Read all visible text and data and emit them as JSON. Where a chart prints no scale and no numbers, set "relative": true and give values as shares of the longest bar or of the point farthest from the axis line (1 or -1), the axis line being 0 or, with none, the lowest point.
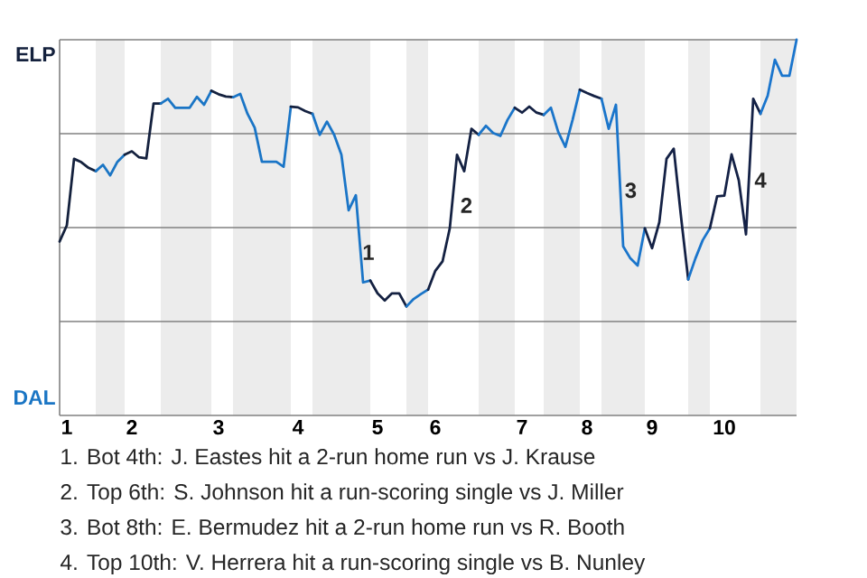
{
  "chart_data": {
    "type": "line",
    "relative": true,
    "grid": true,
    "categories": [
      null,
      "1",
      null,
      null,
      null,
      null,
      null,
      null,
      null,
      null,
      "2",
      null,
      null,
      null,
      null,
      null,
      null,
      null,
      null,
      null,
      null,
      null,
      "3",
      null,
      null,
      null,
      null,
      null,
      null,
      null,
      null,
      null,
      null,
      "4",
      null,
      null,
      null,
      null,
      null,
      null,
      null,
      null,
      null,
      null,
      "5",
      null,
      null,
      null,
      null,
      null,
      null,
      null,
      "6",
      null,
      null,
      null,
      null,
      null,
      null,
      null,
      null,
      null,
      null,
      null,
      "7",
      null,
      null,
      null,
      null,
      null,
      null,
      null,
      null,
      "8",
      null,
      null,
      null,
      null,
      null,
      null,
      null,
      null,
      "9",
      null,
      null,
      null,
      null,
      null,
      null,
      null,
      null,
      null,
      "10",
      null,
      null,
      null,
      null,
      null,
      null,
      null,
      null,
      null,
      null
    ],
    "series": [
      {
        "color": "#14213d",
        "values": [
          0.463,
          0.506,
          0.683,
          0.674,
          0.659,
          0.65,
          null,
          null,
          null,
          null,
          null,
          null,
          null,
          null,
          null,
          null,
          null,
          null,
          null,
          null,
          null,
          null,
          null,
          null,
          null,
          null,
          null,
          null,
          null,
          null,
          null,
          null,
          null,
          null,
          null,
          null,
          null,
          null,
          null,
          null,
          null,
          null,
          null,
          null,
          null,
          null,
          null,
          null,
          null,
          null,
          null,
          null,
          null,
          null,
          null,
          null,
          null,
          null,
          null,
          null,
          null,
          null,
          null,
          null,
          null,
          null,
          null,
          null,
          null,
          null,
          null,
          null,
          null,
          null,
          null,
          null,
          null,
          null,
          null,
          null,
          null,
          null,
          null,
          null,
          null,
          null,
          null,
          null,
          null,
          null,
          null,
          null,
          null,
          null,
          null,
          null,
          null,
          null,
          null,
          null,
          null,
          null,
          null
        ]
      },
      {
        "color": "#1a75c4",
        "values": [
          null,
          null,
          null,
          null,
          null,
          0.65,
          0.667,
          0.639,
          0.675,
          0.694,
          null,
          null,
          null,
          null,
          null,
          null,
          null,
          null,
          null,
          null,
          null,
          null,
          null,
          null,
          null,
          null,
          null,
          null,
          null,
          null,
          null,
          null,
          null,
          null,
          null,
          null,
          null,
          null,
          null,
          null,
          null,
          null,
          null,
          null,
          null,
          null,
          null,
          null,
          null,
          null,
          null,
          null,
          null,
          null,
          null,
          null,
          null,
          null,
          null,
          null,
          null,
          null,
          null,
          null,
          null,
          null,
          null,
          null,
          null,
          null,
          null,
          null,
          null,
          null,
          null,
          null,
          null,
          null,
          null,
          null,
          null,
          null,
          null,
          null,
          null,
          null,
          null,
          null,
          null,
          null,
          null,
          null,
          null,
          null,
          null,
          null,
          null,
          null,
          null,
          null,
          null,
          null,
          null
        ]
      },
      {
        "color": "#14213e",
        "values": [
          null,
          null,
          null,
          null,
          null,
          null,
          null,
          null,
          null,
          0.694,
          0.703,
          0.687,
          0.684,
          0.83,
          0.83,
          null,
          null,
          null,
          null,
          null,
          null,
          null,
          null,
          null,
          null,
          null,
          null,
          null,
          null,
          null,
          null,
          null,
          null,
          null,
          null,
          null,
          null,
          null,
          null,
          null,
          null,
          null,
          null,
          null,
          null,
          null,
          null,
          null,
          null,
          null,
          null,
          null,
          null,
          null,
          null,
          null,
          null,
          null,
          null,
          null,
          null,
          null,
          null,
          null,
          null,
          null,
          null,
          null,
          null,
          null,
          null,
          null,
          null,
          null,
          null,
          null,
          null,
          null,
          null,
          null,
          null,
          null,
          null,
          null,
          null,
          null,
          null,
          null,
          null,
          null,
          null,
          null,
          null,
          null,
          null,
          null,
          null,
          null,
          null,
          null,
          null,
          null,
          null
        ]
      },
      {
        "color": "#1a75c5",
        "values": [
          null,
          null,
          null,
          null,
          null,
          null,
          null,
          null,
          null,
          null,
          null,
          null,
          null,
          null,
          0.83,
          0.843,
          0.819,
          0.819,
          0.819,
          0.848,
          0.827,
          0.864,
          null,
          null,
          null,
          null,
          null,
          null,
          null,
          null,
          null,
          null,
          null,
          null,
          null,
          null,
          null,
          null,
          null,
          null,
          null,
          null,
          null,
          null,
          null,
          null,
          null,
          null,
          null,
          null,
          null,
          null,
          null,
          null,
          null,
          null,
          null,
          null,
          null,
          null,
          null,
          null,
          null,
          null,
          null,
          null,
          null,
          null,
          null,
          null,
          null,
          null,
          null,
          null,
          null,
          null,
          null,
          null,
          null,
          null,
          null,
          null,
          null,
          null,
          null,
          null,
          null,
          null,
          null,
          null,
          null,
          null,
          null,
          null,
          null,
          null,
          null,
          null,
          null,
          null,
          null,
          null,
          null
        ]
      },
      {
        "color": "#14213f",
        "values": [
          null,
          null,
          null,
          null,
          null,
          null,
          null,
          null,
          null,
          null,
          null,
          null,
          null,
          null,
          null,
          null,
          null,
          null,
          null,
          null,
          null,
          0.864,
          0.855,
          0.849,
          0.847,
          null,
          null,
          null,
          null,
          null,
          null,
          null,
          null,
          null,
          null,
          null,
          null,
          null,
          null,
          null,
          null,
          null,
          null,
          null,
          null,
          null,
          null,
          null,
          null,
          null,
          null,
          null,
          null,
          null,
          null,
          null,
          null,
          null,
          null,
          null,
          null,
          null,
          null,
          null,
          null,
          null,
          null,
          null,
          null,
          null,
          null,
          null,
          null,
          null,
          null,
          null,
          null,
          null,
          null,
          null,
          null,
          null,
          null,
          null,
          null,
          null,
          null,
          null,
          null,
          null,
          null,
          null,
          null,
          null,
          null,
          null,
          null,
          null,
          null,
          null,
          null,
          null,
          null
        ]
      },
      {
        "color": "#1a75c6",
        "values": [
          null,
          null,
          null,
          null,
          null,
          null,
          null,
          null,
          null,
          null,
          null,
          null,
          null,
          null,
          null,
          null,
          null,
          null,
          null,
          null,
          null,
          null,
          null,
          null,
          0.847,
          0.856,
          0.803,
          0.766,
          0.675,
          0.675,
          0.675,
          0.662,
          0.822,
          null,
          null,
          null,
          null,
          null,
          null,
          null,
          null,
          null,
          null,
          null,
          null,
          null,
          null,
          null,
          null,
          null,
          null,
          null,
          null,
          null,
          null,
          null,
          null,
          null,
          null,
          null,
          null,
          null,
          null,
          null,
          null,
          null,
          null,
          null,
          null,
          null,
          null,
          null,
          null,
          null,
          null,
          null,
          null,
          null,
          null,
          null,
          null,
          null,
          null,
          null,
          null,
          null,
          null,
          null,
          null,
          null,
          null,
          null,
          null,
          null,
          null,
          null,
          null,
          null,
          null,
          null,
          null,
          null,
          null
        ]
      },
      {
        "color": "#142140",
        "values": [
          null,
          null,
          null,
          null,
          null,
          null,
          null,
          null,
          null,
          null,
          null,
          null,
          null,
          null,
          null,
          null,
          null,
          null,
          null,
          null,
          null,
          null,
          null,
          null,
          null,
          null,
          null,
          null,
          null,
          null,
          null,
          null,
          0.822,
          0.82,
          0.81,
          0.803,
          null,
          null,
          null,
          null,
          null,
          null,
          null,
          null,
          null,
          null,
          null,
          null,
          null,
          null,
          null,
          null,
          null,
          null,
          null,
          null,
          null,
          null,
          null,
          null,
          null,
          null,
          null,
          null,
          null,
          null,
          null,
          null,
          null,
          null,
          null,
          null,
          null,
          null,
          null,
          null,
          null,
          null,
          null,
          null,
          null,
          null,
          null,
          null,
          null,
          null,
          null,
          null,
          null,
          null,
          null,
          null,
          null,
          null,
          null,
          null,
          null,
          null,
          null,
          null,
          null,
          null,
          null
        ]
      },
      {
        "color": "#1a75c7",
        "values": [
          null,
          null,
          null,
          null,
          null,
          null,
          null,
          null,
          null,
          null,
          null,
          null,
          null,
          null,
          null,
          null,
          null,
          null,
          null,
          null,
          null,
          null,
          null,
          null,
          null,
          null,
          null,
          null,
          null,
          null,
          null,
          null,
          null,
          null,
          null,
          0.803,
          0.747,
          0.782,
          0.747,
          0.694,
          0.546,
          0.586,
          0.354,
          0.359,
          null,
          null,
          null,
          null,
          null,
          null,
          null,
          null,
          null,
          null,
          null,
          null,
          null,
          null,
          null,
          null,
          null,
          null,
          null,
          null,
          null,
          null,
          null,
          null,
          null,
          null,
          null,
          null,
          null,
          null,
          null,
          null,
          null,
          null,
          null,
          null,
          null,
          null,
          null,
          null,
          null,
          null,
          null,
          null,
          null,
          null,
          null,
          null,
          null,
          null,
          null,
          null,
          null,
          null,
          null,
          null,
          null,
          null,
          null
        ]
      },
      {
        "color": "#142141",
        "values": [
          null,
          null,
          null,
          null,
          null,
          null,
          null,
          null,
          null,
          null,
          null,
          null,
          null,
          null,
          null,
          null,
          null,
          null,
          null,
          null,
          null,
          null,
          null,
          null,
          null,
          null,
          null,
          null,
          null,
          null,
          null,
          null,
          null,
          null,
          null,
          null,
          null,
          null,
          null,
          null,
          null,
          null,
          null,
          0.359,
          0.325,
          0.306,
          0.325,
          0.325,
          0.29,
          null,
          null,
          null,
          null,
          null,
          null,
          null,
          null,
          null,
          null,
          null,
          null,
          null,
          null,
          null,
          null,
          null,
          null,
          null,
          null,
          null,
          null,
          null,
          null,
          null,
          null,
          null,
          null,
          null,
          null,
          null,
          null,
          null,
          null,
          null,
          null,
          null,
          null,
          null,
          null,
          null,
          null,
          null,
          null,
          null,
          null,
          null,
          null,
          null,
          null,
          null,
          null,
          null,
          null
        ]
      },
      {
        "color": "#1a75c8",
        "values": [
          null,
          null,
          null,
          null,
          null,
          null,
          null,
          null,
          null,
          null,
          null,
          null,
          null,
          null,
          null,
          null,
          null,
          null,
          null,
          null,
          null,
          null,
          null,
          null,
          null,
          null,
          null,
          null,
          null,
          null,
          null,
          null,
          null,
          null,
          null,
          null,
          null,
          null,
          null,
          null,
          null,
          null,
          null,
          null,
          null,
          null,
          null,
          null,
          0.29,
          0.31,
          0.323,
          0.335,
          null,
          null,
          null,
          null,
          null,
          null,
          null,
          null,
          null,
          null,
          null,
          null,
          null,
          null,
          null,
          null,
          null,
          null,
          null,
          null,
          null,
          null,
          null,
          null,
          null,
          null,
          null,
          null,
          null,
          null,
          null,
          null,
          null,
          null,
          null,
          null,
          null,
          null,
          null,
          null,
          null,
          null,
          null,
          null,
          null,
          null,
          null,
          null,
          null,
          null,
          null
        ]
      },
      {
        "color": "#142142",
        "values": [
          null,
          null,
          null,
          null,
          null,
          null,
          null,
          null,
          null,
          null,
          null,
          null,
          null,
          null,
          null,
          null,
          null,
          null,
          null,
          null,
          null,
          null,
          null,
          null,
          null,
          null,
          null,
          null,
          null,
          null,
          null,
          null,
          null,
          null,
          null,
          null,
          null,
          null,
          null,
          null,
          null,
          null,
          null,
          null,
          null,
          null,
          null,
          null,
          null,
          null,
          null,
          0.335,
          0.385,
          0.41,
          0.498,
          0.694,
          0.65,
          0.763,
          0.747,
          null,
          null,
          null,
          null,
          null,
          null,
          null,
          null,
          null,
          null,
          null,
          null,
          null,
          null,
          null,
          null,
          null,
          null,
          null,
          null,
          null,
          null,
          null,
          null,
          null,
          null,
          null,
          null,
          null,
          null,
          null,
          null,
          null,
          null,
          null,
          null,
          null,
          null,
          null,
          null,
          null,
          null,
          null,
          null
        ]
      },
      {
        "color": "#1a75c9",
        "values": [
          null,
          null,
          null,
          null,
          null,
          null,
          null,
          null,
          null,
          null,
          null,
          null,
          null,
          null,
          null,
          null,
          null,
          null,
          null,
          null,
          null,
          null,
          null,
          null,
          null,
          null,
          null,
          null,
          null,
          null,
          null,
          null,
          null,
          null,
          null,
          null,
          null,
          null,
          null,
          null,
          null,
          null,
          null,
          null,
          null,
          null,
          null,
          null,
          null,
          null,
          null,
          null,
          null,
          null,
          null,
          null,
          null,
          null,
          0.747,
          0.771,
          0.752,
          0.744,
          0.787,
          0.819,
          null,
          null,
          null,
          null,
          null,
          null,
          null,
          null,
          null,
          null,
          null,
          null,
          null,
          null,
          null,
          null,
          null,
          null,
          null,
          null,
          null,
          null,
          null,
          null,
          null,
          null,
          null,
          null,
          null,
          null,
          null,
          null,
          null,
          null,
          null,
          null,
          null,
          null,
          null
        ]
      },
      {
        "color": "#142143",
        "values": [
          null,
          null,
          null,
          null,
          null,
          null,
          null,
          null,
          null,
          null,
          null,
          null,
          null,
          null,
          null,
          null,
          null,
          null,
          null,
          null,
          null,
          null,
          null,
          null,
          null,
          null,
          null,
          null,
          null,
          null,
          null,
          null,
          null,
          null,
          null,
          null,
          null,
          null,
          null,
          null,
          null,
          null,
          null,
          null,
          null,
          null,
          null,
          null,
          null,
          null,
          null,
          null,
          null,
          null,
          null,
          null,
          null,
          null,
          null,
          null,
          null,
          null,
          null,
          0.819,
          0.806,
          0.822,
          0.806,
          0.8,
          null,
          null,
          null,
          null,
          null,
          null,
          null,
          null,
          null,
          null,
          null,
          null,
          null,
          null,
          null,
          null,
          null,
          null,
          null,
          null,
          null,
          null,
          null,
          null,
          null,
          null,
          null,
          null,
          null,
          null,
          null,
          null,
          null,
          null,
          null
        ]
      },
      {
        "color": "#1a75ca",
        "values": [
          null,
          null,
          null,
          null,
          null,
          null,
          null,
          null,
          null,
          null,
          null,
          null,
          null,
          null,
          null,
          null,
          null,
          null,
          null,
          null,
          null,
          null,
          null,
          null,
          null,
          null,
          null,
          null,
          null,
          null,
          null,
          null,
          null,
          null,
          null,
          null,
          null,
          null,
          null,
          null,
          null,
          null,
          null,
          null,
          null,
          null,
          null,
          null,
          null,
          null,
          null,
          null,
          null,
          null,
          null,
          null,
          null,
          null,
          null,
          null,
          null,
          null,
          null,
          null,
          null,
          null,
          null,
          0.8,
          0.819,
          0.755,
          0.715,
          0.787,
          0.867,
          null,
          null,
          null,
          null,
          null,
          null,
          null,
          null,
          null,
          null,
          null,
          null,
          null,
          null,
          null,
          null,
          null,
          null,
          null,
          null,
          null,
          null,
          null,
          null,
          null,
          null,
          null,
          null,
          null,
          null
        ]
      },
      {
        "color": "#142144",
        "values": [
          null,
          null,
          null,
          null,
          null,
          null,
          null,
          null,
          null,
          null,
          null,
          null,
          null,
          null,
          null,
          null,
          null,
          null,
          null,
          null,
          null,
          null,
          null,
          null,
          null,
          null,
          null,
          null,
          null,
          null,
          null,
          null,
          null,
          null,
          null,
          null,
          null,
          null,
          null,
          null,
          null,
          null,
          null,
          null,
          null,
          null,
          null,
          null,
          null,
          null,
          null,
          null,
          null,
          null,
          null,
          null,
          null,
          null,
          null,
          null,
          null,
          null,
          null,
          null,
          null,
          null,
          null,
          null,
          null,
          null,
          null,
          null,
          0.867,
          0.858,
          0.85,
          0.843,
          null,
          null,
          null,
          null,
          null,
          null,
          null,
          null,
          null,
          null,
          null,
          null,
          null,
          null,
          null,
          null,
          null,
          null,
          null,
          null,
          null,
          null,
          null,
          null,
          null,
          null,
          null
        ]
      },
      {
        "color": "#1a75cb",
        "values": [
          null,
          null,
          null,
          null,
          null,
          null,
          null,
          null,
          null,
          null,
          null,
          null,
          null,
          null,
          null,
          null,
          null,
          null,
          null,
          null,
          null,
          null,
          null,
          null,
          null,
          null,
          null,
          null,
          null,
          null,
          null,
          null,
          null,
          null,
          null,
          null,
          null,
          null,
          null,
          null,
          null,
          null,
          null,
          null,
          null,
          null,
          null,
          null,
          null,
          null,
          null,
          null,
          null,
          null,
          null,
          null,
          null,
          null,
          null,
          null,
          null,
          null,
          null,
          null,
          null,
          null,
          null,
          null,
          null,
          null,
          null,
          null,
          null,
          null,
          null,
          0.843,
          0.763,
          0.827,
          0.45,
          0.418,
          0.399,
          0.498,
          null,
          null,
          null,
          null,
          null,
          null,
          null,
          null,
          null,
          null,
          null,
          null,
          null,
          null,
          null,
          null,
          null,
          null,
          null,
          null,
          null
        ]
      },
      {
        "color": "#142145",
        "values": [
          null,
          null,
          null,
          null,
          null,
          null,
          null,
          null,
          null,
          null,
          null,
          null,
          null,
          null,
          null,
          null,
          null,
          null,
          null,
          null,
          null,
          null,
          null,
          null,
          null,
          null,
          null,
          null,
          null,
          null,
          null,
          null,
          null,
          null,
          null,
          null,
          null,
          null,
          null,
          null,
          null,
          null,
          null,
          null,
          null,
          null,
          null,
          null,
          null,
          null,
          null,
          null,
          null,
          null,
          null,
          null,
          null,
          null,
          null,
          null,
          null,
          null,
          null,
          null,
          null,
          null,
          null,
          null,
          null,
          null,
          null,
          null,
          null,
          null,
          null,
          null,
          null,
          null,
          null,
          null,
          null,
          0.498,
          0.445,
          0.514,
          0.683,
          0.71,
          0.53,
          0.362,
          null,
          null,
          null,
          null,
          null,
          null,
          null,
          null,
          null,
          null,
          null,
          null,
          null,
          null,
          null
        ]
      },
      {
        "color": "#1a75cc",
        "values": [
          null,
          null,
          null,
          null,
          null,
          null,
          null,
          null,
          null,
          null,
          null,
          null,
          null,
          null,
          null,
          null,
          null,
          null,
          null,
          null,
          null,
          null,
          null,
          null,
          null,
          null,
          null,
          null,
          null,
          null,
          null,
          null,
          null,
          null,
          null,
          null,
          null,
          null,
          null,
          null,
          null,
          null,
          null,
          null,
          null,
          null,
          null,
          null,
          null,
          null,
          null,
          null,
          null,
          null,
          null,
          null,
          null,
          null,
          null,
          null,
          null,
          null,
          null,
          null,
          null,
          null,
          null,
          null,
          null,
          null,
          null,
          null,
          null,
          null,
          null,
          null,
          null,
          null,
          null,
          null,
          null,
          null,
          null,
          null,
          null,
          null,
          null,
          0.362,
          0.418,
          0.466,
          0.498,
          null,
          null,
          null,
          null,
          null,
          null,
          null,
          null,
          null,
          null,
          null,
          null
        ]
      },
      {
        "color": "#142146",
        "values": [
          null,
          null,
          null,
          null,
          null,
          null,
          null,
          null,
          null,
          null,
          null,
          null,
          null,
          null,
          null,
          null,
          null,
          null,
          null,
          null,
          null,
          null,
          null,
          null,
          null,
          null,
          null,
          null,
          null,
          null,
          null,
          null,
          null,
          null,
          null,
          null,
          null,
          null,
          null,
          null,
          null,
          null,
          null,
          null,
          null,
          null,
          null,
          null,
          null,
          null,
          null,
          null,
          null,
          null,
          null,
          null,
          null,
          null,
          null,
          null,
          null,
          null,
          null,
          null,
          null,
          null,
          null,
          null,
          null,
          null,
          null,
          null,
          null,
          null,
          null,
          null,
          null,
          null,
          null,
          null,
          null,
          null,
          null,
          null,
          null,
          null,
          null,
          null,
          null,
          null,
          0.498,
          0.583,
          0.585,
          0.695,
          0.626,
          0.482,
          0.843,
          0.803,
          null,
          null,
          null,
          null,
          null
        ]
      },
      {
        "color": "#1a75cd",
        "values": [
          null,
          null,
          null,
          null,
          null,
          null,
          null,
          null,
          null,
          null,
          null,
          null,
          null,
          null,
          null,
          null,
          null,
          null,
          null,
          null,
          null,
          null,
          null,
          null,
          null,
          null,
          null,
          null,
          null,
          null,
          null,
          null,
          null,
          null,
          null,
          null,
          null,
          null,
          null,
          null,
          null,
          null,
          null,
          null,
          null,
          null,
          null,
          null,
          null,
          null,
          null,
          null,
          null,
          null,
          null,
          null,
          null,
          null,
          null,
          null,
          null,
          null,
          null,
          null,
          null,
          null,
          null,
          null,
          null,
          null,
          null,
          null,
          null,
          null,
          null,
          null,
          null,
          null,
          null,
          null,
          null,
          null,
          null,
          null,
          null,
          null,
          null,
          null,
          null,
          null,
          null,
          null,
          null,
          null,
          null,
          null,
          null,
          0.803,
          0.851,
          0.947,
          0.904,
          0.904,
          1
        ]
      }
    ],
    "annotations": [
      "ELP",
      "DAL",
      "1",
      "2",
      "3",
      "4",
      "1. Bot 4th: J. Eastes hit a 2-run home run vs J. Krause",
      "2. Top 6th: S. Johnson hit a run-scoring single vs J. Miller",
      "3. Bot 8th: E. Bermudez hit a 2-run home run vs R. Booth",
      "4. Top 10th: V. Herrera hit a run-scoring single vs B. Nunley"
    ]
  }
}
